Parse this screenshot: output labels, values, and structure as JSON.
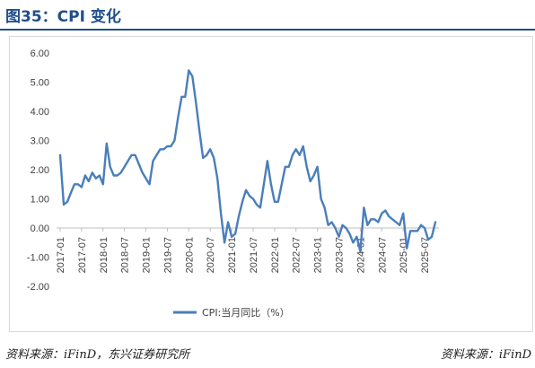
{
  "header": {
    "title": "图35：CPI 变化"
  },
  "footer": {
    "source": "资料来源：iFinD，东兴证券研究所",
    "source_right": "资料来源：iFinD"
  },
  "colors": {
    "line": "#4a7ebb",
    "title": "#1f4e8c",
    "axis_text": "#404040"
  },
  "chart_data": {
    "type": "line",
    "title": "",
    "xlabel": "",
    "ylabel": "",
    "ylim": [
      -2,
      6
    ],
    "yticks": [
      6.0,
      5.0,
      4.0,
      3.0,
      2.0,
      1.0,
      0.0,
      -1.0,
      -2.0
    ],
    "ytick_labels": [
      "6.00",
      "5.00",
      "4.00",
      "3.00",
      "2.00",
      "1.00",
      "0.00",
      "-1.00",
      "-2.00"
    ],
    "xtick_labels": [
      "2017-01",
      "2017-07",
      "2018-01",
      "2018-07",
      "2019-01",
      "2019-07",
      "2020-01",
      "2020-07",
      "2021-01",
      "2021-07",
      "2022-01",
      "2022-07",
      "2023-01",
      "2023-07",
      "2024-01",
      "2024-07",
      "2025-01",
      "2025-07"
    ],
    "legend": "bottom-center",
    "grid": false,
    "series": [
      {
        "name": "CPI:当月同比（%）",
        "x_start": "2017-01",
        "values": [
          2.5,
          0.8,
          0.9,
          1.2,
          1.5,
          1.5,
          1.4,
          1.8,
          1.6,
          1.9,
          1.7,
          1.8,
          1.5,
          2.9,
          2.1,
          1.8,
          1.8,
          1.9,
          2.1,
          2.3,
          2.5,
          2.5,
          2.2,
          1.9,
          1.7,
          1.5,
          2.3,
          2.5,
          2.7,
          2.7,
          2.8,
          2.8,
          3.0,
          3.8,
          4.5,
          4.5,
          5.4,
          5.2,
          4.3,
          3.3,
          2.4,
          2.5,
          2.7,
          2.4,
          1.7,
          0.5,
          -0.5,
          0.2,
          -0.3,
          -0.2,
          0.4,
          0.9,
          1.3,
          1.1,
          1.0,
          0.8,
          0.7,
          1.5,
          2.3,
          1.5,
          0.9,
          0.9,
          1.5,
          2.1,
          2.1,
          2.5,
          2.7,
          2.5,
          2.8,
          2.1,
          1.6,
          1.8,
          2.1,
          1.0,
          0.7,
          0.1,
          0.2,
          0.0,
          -0.3,
          0.1,
          0.0,
          -0.2,
          -0.5,
          -0.3,
          -0.8,
          0.7,
          0.1,
          0.3,
          0.3,
          0.2,
          0.5,
          0.6,
          0.4,
          0.3,
          0.2,
          0.1,
          0.5,
          -0.7,
          -0.1,
          -0.1,
          -0.1,
          0.1,
          0.0,
          -0.4,
          -0.3,
          0.2
        ]
      }
    ]
  }
}
